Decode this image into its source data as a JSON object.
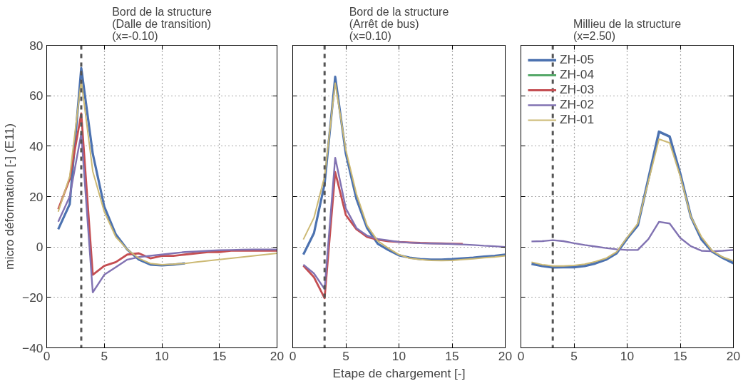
{
  "chart_data": [
    {
      "type": "line",
      "title": "Bord de la structure\n(Dalle de transition)\n(x=-0.10)",
      "ylabel": "micro déformation [-] (E11)",
      "x": [
        1,
        2,
        3,
        4,
        5,
        6,
        7,
        8,
        9,
        10,
        11,
        12,
        13,
        14,
        15,
        16,
        17,
        18,
        19,
        20
      ],
      "xlim": [
        0,
        20
      ],
      "xticks": [
        0,
        5,
        10,
        15,
        20
      ],
      "ylim": [
        -40,
        80
      ],
      "yticks": [
        -40,
        -20,
        0,
        20,
        40,
        60,
        80
      ],
      "grid": true,
      "legend": false,
      "line_style": "solid",
      "ref_lines": [
        {
          "axis": "x",
          "value": 3,
          "color": "#555555",
          "line_style": "dashed"
        }
      ],
      "series": [
        {
          "color": "#4c72b0",
          "values": [
            7,
            17,
            71,
            37,
            16,
            5,
            -1,
            -5,
            -7,
            -7.3,
            -7,
            -6.5,
            null,
            null,
            null,
            null,
            null,
            null,
            null,
            null
          ]
        },
        {
          "color": "#c44e52",
          "values": [
            15,
            27,
            53,
            -11,
            -7.5,
            -6,
            -3,
            -2.5,
            -4.5,
            -3.5,
            -3.5,
            -3,
            -2.5,
            -2,
            -2,
            -1.5,
            -1.5,
            -1.5,
            -1.5,
            -1.5
          ]
        },
        {
          "color": "#8172b2",
          "values": [
            10,
            20,
            45,
            -18,
            -11,
            -8,
            -5,
            -4,
            -3.5,
            -3,
            -2.5,
            -2,
            -1.8,
            -1.5,
            -1.3,
            -1.2,
            -1.1,
            -1,
            -1,
            -1
          ]
        },
        {
          "color": "#ccb974",
          "values": [
            14,
            28,
            66,
            30,
            14,
            4,
            -1,
            -4.5,
            -6.5,
            -7,
            -6.8,
            -6.5,
            -6,
            -5.5,
            -5,
            -4.5,
            -4,
            -3.5,
            -3,
            -2.5
          ]
        }
      ]
    },
    {
      "type": "line",
      "title": "Bord de la structure\n(Arrêt de bus)\n(x=0.10)",
      "xlabel": "Etape de chargement [-]",
      "x": [
        1,
        2,
        3,
        4,
        5,
        6,
        7,
        8,
        9,
        10,
        11,
        12,
        13,
        14,
        15,
        16,
        17,
        18,
        19,
        20
      ],
      "xlim": [
        0,
        20
      ],
      "xticks": [
        0,
        5,
        10,
        15,
        20
      ],
      "ylim": [
        -40,
        80
      ],
      "yticks": [
        -40,
        -20,
        0,
        20,
        40,
        60,
        80
      ],
      "tick_labels": "x",
      "grid": true,
      "legend": false,
      "line_style": "solid",
      "ref_lines": [
        {
          "axis": "x",
          "value": 3,
          "color": "#555555",
          "line_style": "dashed"
        }
      ],
      "series": [
        {
          "color": "#4c72b0",
          "values": [
            -3,
            5.5,
            25,
            67.5,
            37,
            19,
            7.5,
            1.3,
            -1.2,
            -3.3,
            -4.2,
            -4.8,
            -5,
            -5,
            -4.8,
            -4.5,
            -4.2,
            -3.8,
            -3.5,
            -3
          ]
        },
        {
          "color": "#c44e52",
          "values": [
            -7.4,
            -12,
            -20.3,
            29.7,
            12.7,
            7,
            4,
            2.9,
            2.3,
            2,
            1.8,
            1.6,
            1.5,
            1.4,
            1.3,
            1.2,
            null,
            null,
            null,
            null
          ]
        },
        {
          "color": "#8172b2",
          "values": [
            -7,
            -10.5,
            -16.7,
            35.4,
            15.3,
            7.5,
            4.5,
            3.2,
            2.6,
            2,
            1.7,
            1.5,
            1.4,
            1.3,
            1.2,
            1,
            0.8,
            0.5,
            0.3,
            0
          ]
        },
        {
          "color": "#ccb974",
          "values": [
            3,
            11.6,
            28,
            65,
            38.5,
            21,
            8.5,
            2.4,
            -0.5,
            -3,
            -4.5,
            -5,
            -5.3,
            -5.4,
            -5.3,
            -5,
            -4.7,
            -4.3,
            -4,
            -3.5
          ]
        }
      ]
    },
    {
      "type": "line",
      "title": "Millieu de la structure\n(x=2.50)",
      "x": [
        1,
        2,
        3,
        4,
        5,
        6,
        7,
        8,
        9,
        10,
        11,
        12,
        13,
        14,
        15,
        16,
        17,
        18,
        19,
        20
      ],
      "xlim": [
        0,
        20
      ],
      "xticks": [
        0,
        5,
        10,
        15,
        20
      ],
      "ylim": [
        -40,
        80
      ],
      "yticks": [
        -40,
        -20,
        0,
        20,
        40,
        60,
        80
      ],
      "tick_labels": "x",
      "grid": true,
      "legend": "top left",
      "line_style": "solid",
      "ref_lines": [
        {
          "axis": "x",
          "value": 3,
          "color": "#555555",
          "line_style": "dashed"
        }
      ],
      "series": [
        {
          "name": "ZH-05",
          "color": "#4c72b0",
          "values": [
            -6.7,
            -7.5,
            -8.1,
            -8,
            -8,
            -7.5,
            -6.5,
            -5,
            -2.5,
            3.4,
            8.6,
            27,
            45.7,
            43.8,
            29,
            12,
            3,
            -1.8,
            -4.3,
            -6.4
          ]
        },
        {
          "name": "ZH-04",
          "color": "#55a868",
          "values": [
            null,
            null,
            null,
            null,
            null,
            null,
            null,
            null,
            null,
            null,
            null,
            null,
            null,
            null,
            null,
            null,
            null,
            null,
            null,
            null
          ]
        },
        {
          "name": "ZH-03",
          "color": "#c44e52",
          "values": [
            null,
            null,
            null,
            null,
            null,
            null,
            null,
            null,
            null,
            null,
            null,
            null,
            null,
            null,
            null,
            null,
            null,
            null,
            null,
            null
          ]
        },
        {
          "name": "ZH-02",
          "color": "#8172b2",
          "values": [
            2.2,
            2.3,
            2.7,
            2.3,
            1.5,
            0.8,
            0.2,
            -0.4,
            -0.9,
            -1.2,
            -1.2,
            3.1,
            10,
            9.3,
            3.6,
            0.3,
            -1.5,
            -1.7,
            -1.5,
            -1.2
          ]
        },
        {
          "name": "ZH-01",
          "color": "#ccb974",
          "values": [
            -6,
            -7,
            -7.5,
            -7.5,
            -7.3,
            -6.8,
            -5.8,
            -4.5,
            -2,
            3.8,
            9.3,
            26,
            42.8,
            41.3,
            28,
            12,
            4,
            -1.5,
            -4,
            -5.5
          ]
        }
      ]
    }
  ]
}
